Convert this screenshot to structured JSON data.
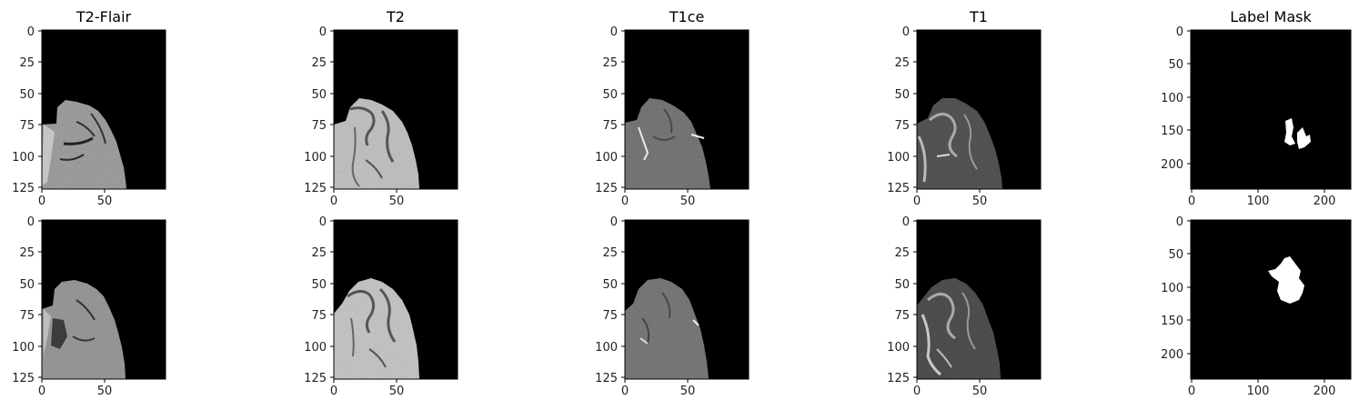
{
  "figure": {
    "columns": [
      {
        "title": "T2-Flair",
        "modality": "flair"
      },
      {
        "title": "T2",
        "modality": "t2"
      },
      {
        "title": "T1ce",
        "modality": "t1ce"
      },
      {
        "title": "T1",
        "modality": "t1"
      },
      {
        "title": "Label Mask",
        "modality": "mask"
      }
    ],
    "rows": [
      {
        "panels": [
          {
            "x_ticks": [
              "0",
              "50"
            ],
            "y_ticks": [
              "0",
              "25",
              "50",
              "75",
              "100",
              "125"
            ]
          },
          {
            "x_ticks": [
              "0",
              "50"
            ],
            "y_ticks": [
              "0",
              "25",
              "50",
              "75",
              "100",
              "125"
            ]
          },
          {
            "x_ticks": [
              "0",
              "50"
            ],
            "y_ticks": [
              "0",
              "25",
              "50",
              "75",
              "100",
              "125"
            ]
          },
          {
            "x_ticks": [
              "0",
              "50"
            ],
            "y_ticks": [
              "0",
              "25",
              "50",
              "75",
              "100",
              "125"
            ]
          },
          {
            "x_ticks": [
              "0",
              "100",
              "200"
            ],
            "y_ticks": [
              "0",
              "50",
              "100",
              "150",
              "200"
            ]
          }
        ]
      },
      {
        "panels": [
          {
            "x_ticks": [
              "0",
              "50"
            ],
            "y_ticks": [
              "0",
              "25",
              "50",
              "75",
              "100",
              "125"
            ]
          },
          {
            "x_ticks": [
              "0",
              "50"
            ],
            "y_ticks": [
              "0",
              "25",
              "50",
              "75",
              "100",
              "125"
            ]
          },
          {
            "x_ticks": [
              "0",
              "50"
            ],
            "y_ticks": [
              "0",
              "25",
              "50",
              "75",
              "100",
              "125"
            ]
          },
          {
            "x_ticks": [
              "0",
              "50"
            ],
            "y_ticks": [
              "0",
              "25",
              "50",
              "75",
              "100",
              "125"
            ]
          },
          {
            "x_ticks": [
              "0",
              "100",
              "200"
            ],
            "y_ticks": [
              "0",
              "50",
              "100",
              "150",
              "200"
            ]
          }
        ]
      }
    ]
  },
  "colors": {
    "background": "#000000",
    "mask": "#ffffff",
    "flair": "#a8a8a8",
    "t2": "#c8c8c8",
    "t1ce": "#7a7a7a",
    "t1": "#5a5a5a"
  }
}
